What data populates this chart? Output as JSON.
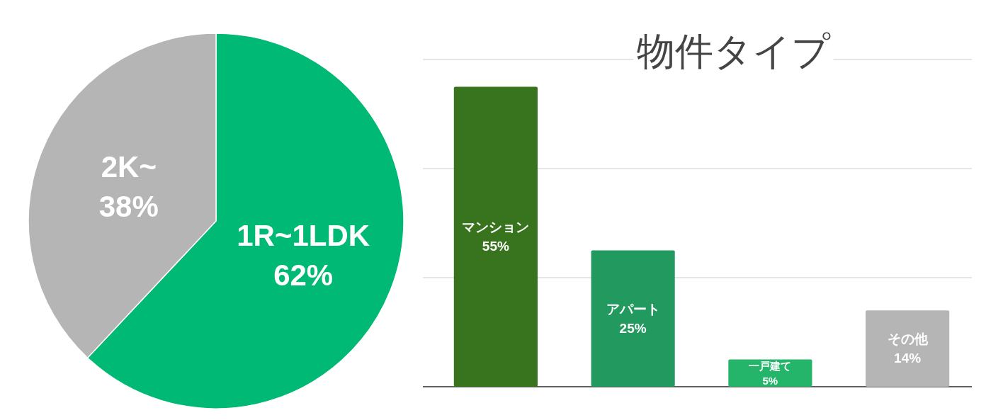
{
  "chart_data": [
    {
      "type": "pie",
      "categories": [
        "1R~1LDK",
        "2K~"
      ],
      "values": [
        62,
        38
      ],
      "colors": [
        "#00b974",
        "#b5b5b5"
      ],
      "value_labels": [
        "62%",
        "38%"
      ]
    },
    {
      "type": "bar",
      "title": "物件タイプ",
      "categories": [
        "マンション",
        "アパート",
        "一戸建て",
        "その他"
      ],
      "values": [
        55,
        25,
        5,
        14
      ],
      "colors": [
        "#38741d",
        "#22995f",
        "#25b56a",
        "#b5b5b5"
      ],
      "value_labels": [
        "55%",
        "25%",
        "5%",
        "14%"
      ],
      "ylim": [
        0,
        60
      ],
      "yticks": [
        {
          "value": 0,
          "label": null
        },
        {
          "value": 20,
          "label": null
        },
        {
          "value": 40,
          "label": null
        },
        {
          "value": 60,
          "label": null
        }
      ],
      "grid": "y"
    }
  ]
}
